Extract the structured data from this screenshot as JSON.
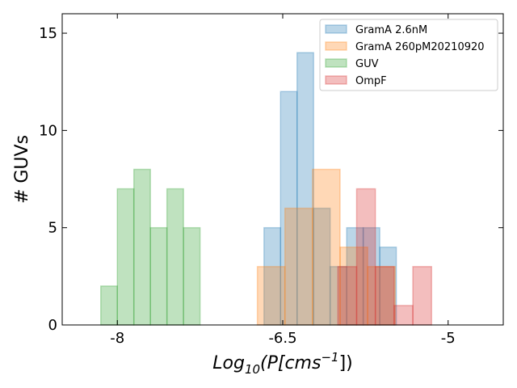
{
  "chart_data": {
    "type": "bar",
    "ylabel": "# GUVs",
    "xlabel": {
      "main": "Log",
      "sub": "10",
      "open": "(P[cms",
      "sup": "−1",
      "close": "])"
    },
    "xlim": [
      -8.5,
      -4.5
    ],
    "ylim": [
      0,
      16
    ],
    "xticks": [
      {
        "value": -8,
        "label": "-8"
      },
      {
        "value": -6.5,
        "label": "-6.5"
      },
      {
        "value": -5,
        "label": "-5"
      }
    ],
    "yticks": [
      {
        "value": 0,
        "label": "0"
      },
      {
        "value": 5,
        "label": "5"
      },
      {
        "value": 10,
        "label": "10"
      },
      {
        "value": 15,
        "label": "15"
      }
    ],
    "legend_position": "top-right",
    "series": [
      {
        "name": "GramA 2.6nM",
        "color": "#1f77b4",
        "bins": [
          {
            "x0": -6.67,
            "x1": -6.52,
            "y": 5
          },
          {
            "x0": -6.52,
            "x1": -6.37,
            "y": 12
          },
          {
            "x0": -6.37,
            "x1": -6.22,
            "y": 14
          },
          {
            "x0": -6.22,
            "x1": -6.07,
            "y": 6
          },
          {
            "x0": -6.07,
            "x1": -5.92,
            "y": 3
          },
          {
            "x0": -5.92,
            "x1": -5.77,
            "y": 5
          },
          {
            "x0": -5.77,
            "x1": -5.62,
            "y": 5
          },
          {
            "x0": -5.62,
            "x1": -5.47,
            "y": 4
          }
        ]
      },
      {
        "name": "GramA 260pM20210920",
        "color": "#ff7f0e",
        "bins": [
          {
            "x0": -6.73,
            "x1": -6.48,
            "y": 3
          },
          {
            "x0": -6.48,
            "x1": -6.23,
            "y": 6
          },
          {
            "x0": -6.23,
            "x1": -5.98,
            "y": 8
          },
          {
            "x0": -5.98,
            "x1": -5.73,
            "y": 4
          },
          {
            "x0": -5.73,
            "x1": -5.48,
            "y": 3
          }
        ]
      },
      {
        "name": "GUV",
        "color": "#2ca02c",
        "bins": [
          {
            "x0": -8.15,
            "x1": -8.0,
            "y": 2
          },
          {
            "x0": -8.0,
            "x1": -7.85,
            "y": 7
          },
          {
            "x0": -7.85,
            "x1": -7.7,
            "y": 8
          },
          {
            "x0": -7.7,
            "x1": -7.55,
            "y": 5
          },
          {
            "x0": -7.55,
            "x1": -7.4,
            "y": 7
          },
          {
            "x0": -7.4,
            "x1": -7.25,
            "y": 5
          }
        ]
      },
      {
        "name": "OmpF",
        "color": "#d62728",
        "bins": [
          {
            "x0": -6.0,
            "x1": -5.83,
            "y": 3
          },
          {
            "x0": -5.83,
            "x1": -5.66,
            "y": 7
          },
          {
            "x0": -5.66,
            "x1": -5.49,
            "y": 3
          },
          {
            "x0": -5.49,
            "x1": -5.32,
            "y": 1
          },
          {
            "x0": -5.32,
            "x1": -5.15,
            "y": 3
          }
        ]
      }
    ]
  }
}
